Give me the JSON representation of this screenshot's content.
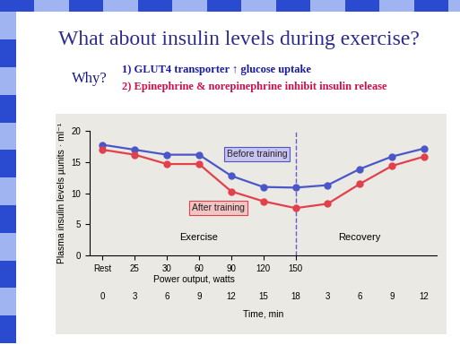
{
  "slide": {
    "title": "What about insulin levels during exercise?",
    "why": "Why?",
    "reasons": [
      {
        "text": "1) GLUT4 transporter ↑ glucose uptake",
        "color": "#1a1aa6"
      },
      {
        "text": "2) Epinephrine & norepinephrine inhibit insulin release",
        "color": "#d0104c"
      }
    ]
  },
  "chart_data": {
    "type": "line",
    "ylabel": "Plasma insulin levels µunits · ml⁻¹",
    "xlabel": "Time, min",
    "categories": [
      "0",
      "3",
      "6",
      "9",
      "12",
      "15",
      "18",
      "3",
      "6",
      "9",
      "12"
    ],
    "power_output": {
      "label": "Power output, watts",
      "ticks": [
        "Rest",
        "25",
        "30",
        "60",
        "90",
        "120",
        "150",
        null,
        null,
        null,
        null
      ]
    },
    "phases": [
      {
        "label": "Exercise",
        "start": 0,
        "end": 6
      },
      {
        "label": "Recovery",
        "start": 6,
        "end": 10
      }
    ],
    "series": [
      {
        "name": "Before training",
        "color": "#4b57c8",
        "marker": "o",
        "line_style": "solid",
        "values": [
          17.8,
          17.0,
          16.2,
          16.2,
          12.8,
          11.0,
          10.9,
          11.3,
          13.9,
          15.9,
          17.2
        ]
      },
      {
        "name": "After training",
        "color": "#e2404a",
        "marker": "o",
        "line_style": "solid",
        "values": [
          17.0,
          16.2,
          14.7,
          14.7,
          10.3,
          8.7,
          7.6,
          8.3,
          11.5,
          14.4,
          15.9
        ]
      }
    ],
    "ylim": [
      0,
      20
    ],
    "yticks": [
      0,
      5,
      10,
      15,
      20
    ],
    "grid": false
  }
}
